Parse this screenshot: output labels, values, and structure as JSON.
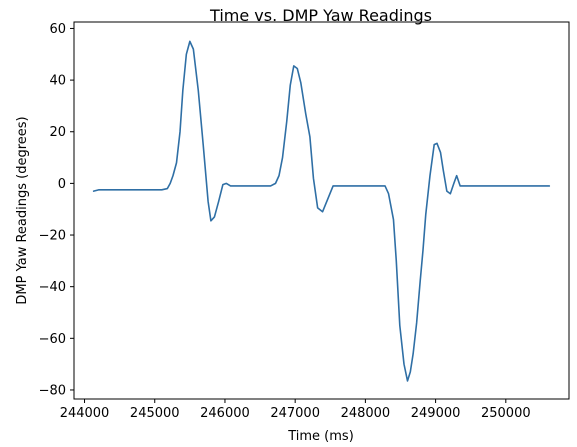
{
  "chart_data": {
    "type": "line",
    "title": "Time vs. DMP Yaw Readings",
    "xlabel": "Time (ms)",
    "ylabel": "DMP Yaw Readings (degrees)",
    "xlim": [
      243850,
      250900
    ],
    "ylim": [
      -83.5,
      62.5
    ],
    "xticks": [
      244000,
      245000,
      246000,
      247000,
      248000,
      249000,
      250000
    ],
    "xtick_labels": [
      "244000",
      "245000",
      "246000",
      "247000",
      "248000",
      "249000",
      "250000"
    ],
    "yticks": [
      60,
      40,
      20,
      0,
      -20,
      -40,
      -60,
      -80
    ],
    "ytick_labels": [
      "60",
      "40",
      "20",
      "0",
      "−20",
      "−40",
      "−60",
      "−80"
    ],
    "grid": false,
    "legend": "none",
    "line_color": "#2f6fa5",
    "series": [
      {
        "x": [
          244130,
          244200,
          244300,
          244500,
          244700,
          244900,
          245100,
          245180,
          245220,
          245260,
          245310,
          245360,
          245400,
          245450,
          245500,
          245550,
          245620,
          245690,
          245760,
          245800,
          245850,
          245910,
          245970,
          246020,
          246080,
          246140,
          246190,
          246250,
          246350,
          246500,
          246650,
          246720,
          246770,
          246820,
          246880,
          246930,
          246980,
          247030,
          247080,
          247150,
          247210,
          247260,
          247320,
          247390,
          247450,
          247540,
          247700,
          247900,
          248050,
          248150,
          248230,
          248280,
          248330,
          248400,
          248440,
          248490,
          248550,
          248600,
          248640,
          248680,
          248730,
          248780,
          248820,
          248860,
          248920,
          248980,
          249020,
          249070,
          249110,
          249160,
          249210,
          249260,
          249300,
          249350,
          249380,
          249430,
          249500,
          249560,
          249700,
          249900,
          250100,
          250300,
          250500,
          250620
        ],
        "y": [
          -3,
          -2.5,
          -2.5,
          -2.5,
          -2.5,
          -2.5,
          -2.5,
          -2,
          0,
          3,
          8,
          20,
          36,
          50,
          55,
          52,
          36,
          15,
          -7,
          -14.5,
          -13,
          -7,
          -0.5,
          0,
          -1,
          -1,
          -1,
          -1,
          -1,
          -1,
          -1,
          0,
          3,
          10,
          24,
          38,
          45.5,
          44.5,
          39,
          27,
          18,
          2,
          -9.5,
          -11,
          -7,
          -1,
          -1,
          -1,
          -1,
          -1,
          -1,
          -1,
          -4,
          -14,
          -30,
          -55,
          -70,
          -76.5,
          -73,
          -66,
          -54,
          -38,
          -26,
          -12,
          3,
          15,
          15.5,
          12,
          5,
          -3,
          -4,
          0,
          3,
          -1,
          -1,
          -1,
          -1,
          -1,
          -1,
          -1,
          -1,
          -1,
          -1,
          -1
        ]
      }
    ]
  }
}
